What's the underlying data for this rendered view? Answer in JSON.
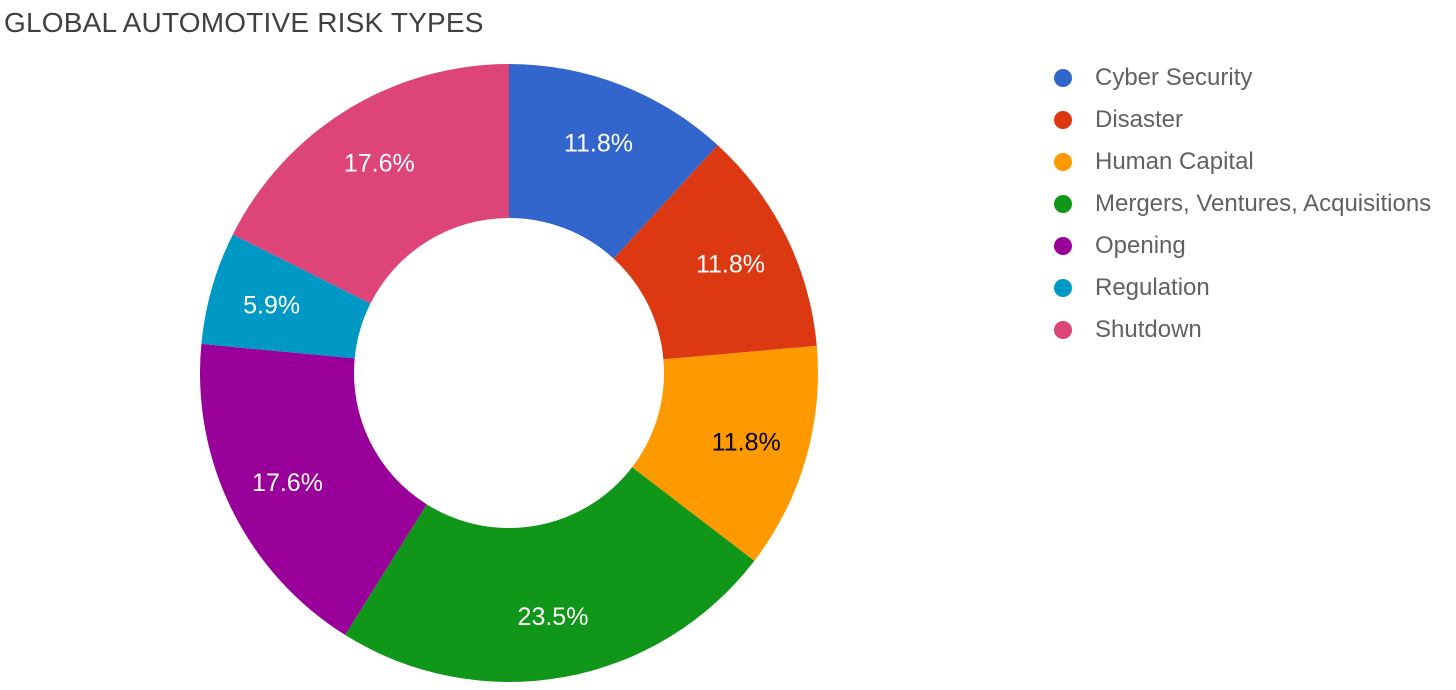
{
  "title": "GLOBAL AUTOMOTIVE RISK TYPES",
  "chart_data": {
    "type": "pie",
    "subtype": "donut",
    "title": "GLOBAL AUTOMOTIVE RISK TYPES",
    "donut_hole_ratio": 0.5,
    "legend_position": "right",
    "start_angle_deg": 0,
    "direction": "clockwise",
    "slices": [
      {
        "label": "Cyber Security",
        "value_pct": 11.8,
        "display": "11.8%",
        "color": "#3366CC",
        "label_text_color": "#FFFFFF"
      },
      {
        "label": "Disaster",
        "value_pct": 11.8,
        "display": "11.8%",
        "color": "#DC3912",
        "label_text_color": "#FFFFFF"
      },
      {
        "label": "Human Capital",
        "value_pct": 11.8,
        "display": "11.8%",
        "color": "#FF9900",
        "label_text_color": "#000000"
      },
      {
        "label": "Mergers, Ventures, Acquisitions",
        "value_pct": 23.5,
        "display": "23.5%",
        "color": "#109618",
        "label_text_color": "#FFFFFF"
      },
      {
        "label": "Opening",
        "value_pct": 17.6,
        "display": "17.6%",
        "color": "#990099",
        "label_text_color": "#FFFFFF"
      },
      {
        "label": "Regulation",
        "value_pct": 5.9,
        "display": "5.9%",
        "color": "#0099C6",
        "label_text_color": "#FFFFFF"
      },
      {
        "label": "Shutdown",
        "value_pct": 17.6,
        "display": "17.6%",
        "color": "#DD4477",
        "label_text_color": "#FFFFFF"
      }
    ],
    "styles": {
      "title_color": "#404040",
      "legend_text_color": "#616161",
      "background": "#FFFFFF"
    }
  }
}
